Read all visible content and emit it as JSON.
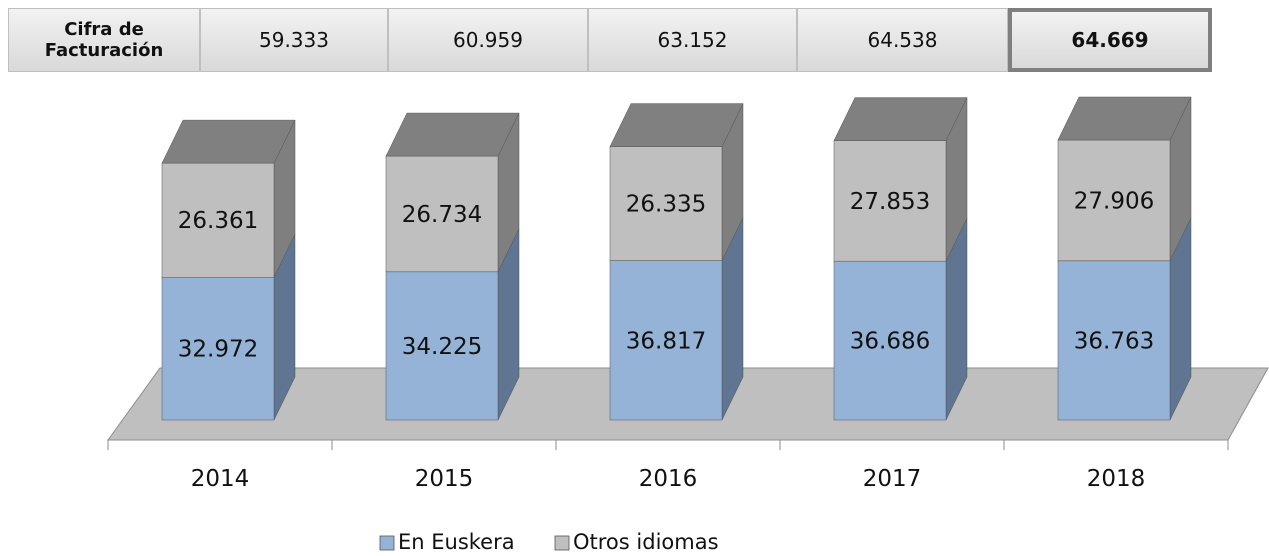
{
  "chart_data": {
    "type": "stacked-bar-3d",
    "table": {
      "label": "Cifra de\nFacturación",
      "values": [
        "59.333",
        "60.959",
        "63.152",
        "64.538",
        "64.669"
      ]
    },
    "categories": [
      "2014",
      "2015",
      "2016",
      "2017",
      "2018"
    ],
    "series": [
      {
        "name": "En Euskera",
        "color": "#95b3d7",
        "side": "#5f7591",
        "values": [
          32972,
          34225,
          36817,
          36686,
          36763
        ],
        "value_labels": [
          "32.972",
          "34.225",
          "36.817",
          "36.686",
          "36.763"
        ]
      },
      {
        "name": "Otros idiomas",
        "color": "#bfbfbf",
        "side": "#7f7f7f",
        "values": [
          26361,
          26734,
          26335,
          27853,
          27906
        ],
        "value_labels": [
          "26.361",
          "26.734",
          "26.335",
          "27.853",
          "27.906"
        ]
      }
    ]
  }
}
